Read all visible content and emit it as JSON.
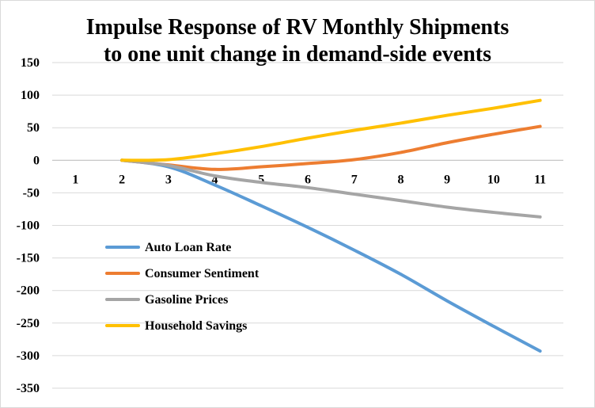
{
  "chart_data": {
    "type": "line",
    "title": "Impulse Response of RV Monthly Shipments to one unit change in demand-side events",
    "title_lines": [
      "Impulse Response of RV Monthly Shipments",
      "to one unit change in demand-side events"
    ],
    "xlabel": "",
    "ylabel": "",
    "categories": [
      "1",
      "2",
      "3",
      "4",
      "5",
      "6",
      "7",
      "8",
      "9",
      "10",
      "11"
    ],
    "y_ticks": [
      "150",
      "100",
      "50",
      "0",
      "-50",
      "-100",
      "-150",
      "-200",
      "-250",
      "-300",
      "-350"
    ],
    "ylim": [
      -350,
      150
    ],
    "grid": true,
    "legend_position": "left-middle",
    "series": [
      {
        "name": "Auto Loan Rate",
        "color": "#5B9BD5",
        "values": [
          null,
          0,
          -10,
          -38,
          -70,
          -103,
          -138,
          -175,
          -216,
          -255,
          -293
        ]
      },
      {
        "name": "Consumer Sentiment",
        "color": "#ED7D31",
        "values": [
          null,
          0,
          -7,
          -14,
          -10,
          -5,
          1,
          12,
          27,
          40,
          52
        ]
      },
      {
        "name": "Gasoline Prices",
        "color": "#A5A5A5",
        "values": [
          null,
          0,
          -8,
          -24,
          -34,
          -42,
          -52,
          -62,
          -72,
          -80,
          -87
        ]
      },
      {
        "name": "Household Savings",
        "color": "#FFC000",
        "values": [
          null,
          0,
          1,
          10,
          21,
          34,
          46,
          57,
          69,
          80,
          92
        ]
      }
    ]
  }
}
